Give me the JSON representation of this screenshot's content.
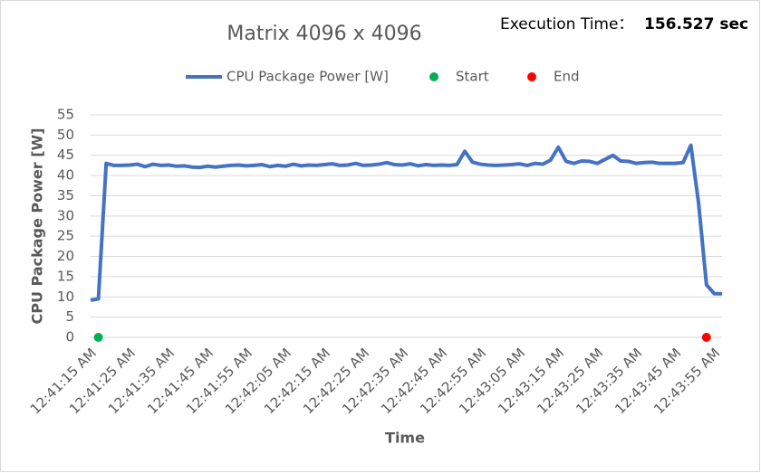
{
  "chart_data": {
    "type": "line",
    "title": "Matrix 4096 x 4096",
    "execution_time_label": "Execution Time：",
    "execution_time_value": "156.527 sec",
    "x_label": "Time",
    "y_label": "CPU Package Power [W]",
    "categories": [
      "12:41:15 AM",
      null,
      null,
      null,
      null,
      "12:41:25 AM",
      null,
      null,
      null,
      null,
      "12:41:35 AM",
      null,
      null,
      null,
      null,
      "12:41:45 AM",
      null,
      null,
      null,
      null,
      "12:41:55 AM",
      null,
      null,
      null,
      null,
      "12:42:05 AM",
      null,
      null,
      null,
      null,
      "12:42:15 AM",
      null,
      null,
      null,
      null,
      "12:42:25 AM",
      null,
      null,
      null,
      null,
      "12:42:35 AM",
      null,
      null,
      null,
      null,
      "12:42:45 AM",
      null,
      null,
      null,
      null,
      "12:42:55 AM",
      null,
      null,
      null,
      null,
      "12:43:05 AM",
      null,
      null,
      null,
      null,
      "12:43:15 AM",
      null,
      null,
      null,
      null,
      "12:43:25 AM",
      null,
      null,
      null,
      null,
      "12:43:35 AM",
      null,
      null,
      null,
      null,
      "12:43:45 AM",
      null,
      null,
      null,
      null,
      "12:43:55 AM",
      null
    ],
    "series": [
      {
        "name": "CPU Package Power [W]",
        "color": "#4472c4",
        "values": [
          9.2,
          9.5,
          43,
          42.5,
          42.5,
          42.6,
          42.8,
          42.2,
          42.8,
          42.5,
          42.6,
          42.3,
          42.4,
          42.1,
          42,
          42.3,
          42.1,
          42.3,
          42.5,
          42.6,
          42.4,
          42.5,
          42.7,
          42.2,
          42.5,
          42.3,
          42.8,
          42.4,
          42.6,
          42.5,
          42.7,
          42.9,
          42.5,
          42.6,
          43,
          42.5,
          42.6,
          42.8,
          43.2,
          42.7,
          42.6,
          42.9,
          42.4,
          42.7,
          42.5,
          42.6,
          42.5,
          42.7,
          46,
          43.3,
          42.8,
          42.6,
          42.5,
          42.6,
          42.7,
          42.9,
          42.5,
          43,
          42.8,
          43.8,
          47,
          43.5,
          43,
          43.6,
          43.5,
          43,
          44,
          45,
          43.6,
          43.5,
          43,
          43.2,
          43.3,
          43,
          43,
          43,
          43.2,
          47.5,
          33,
          13,
          10.8,
          10.8
        ]
      },
      {
        "name": "Start",
        "color": "#00b050",
        "values": [
          null,
          0,
          null,
          null,
          null,
          null,
          null,
          null,
          null,
          null,
          null,
          null,
          null,
          null,
          null,
          null,
          null,
          null,
          null,
          null,
          null,
          null,
          null,
          null,
          null,
          null,
          null,
          null,
          null,
          null,
          null,
          null,
          null,
          null,
          null,
          null,
          null,
          null,
          null,
          null,
          null,
          null,
          null,
          null,
          null,
          null,
          null,
          null,
          null,
          null,
          null,
          null,
          null,
          null,
          null,
          null,
          null,
          null,
          null,
          null,
          null,
          null,
          null,
          null,
          null,
          null,
          null,
          null,
          null,
          null,
          null,
          null,
          null,
          null,
          null,
          null,
          null,
          null,
          null,
          null,
          null,
          null
        ]
      },
      {
        "name": "End",
        "color": "#ff0000",
        "values": [
          null,
          null,
          null,
          null,
          null,
          null,
          null,
          null,
          null,
          null,
          null,
          null,
          null,
          null,
          null,
          null,
          null,
          null,
          null,
          null,
          null,
          null,
          null,
          null,
          null,
          null,
          null,
          null,
          null,
          null,
          null,
          null,
          null,
          null,
          null,
          null,
          null,
          null,
          null,
          null,
          null,
          null,
          null,
          null,
          null,
          null,
          null,
          null,
          null,
          null,
          null,
          null,
          null,
          null,
          null,
          null,
          null,
          null,
          null,
          null,
          null,
          null,
          null,
          null,
          null,
          null,
          null,
          null,
          null,
          null,
          null,
          null,
          null,
          null,
          null,
          null,
          null,
          null,
          null,
          0,
          null,
          null
        ]
      }
    ],
    "ylim": [
      0,
      55
    ],
    "yticks": [
      0,
      5,
      10,
      15,
      20,
      25,
      30,
      35,
      40,
      45,
      50,
      55
    ],
    "grid": true
  }
}
